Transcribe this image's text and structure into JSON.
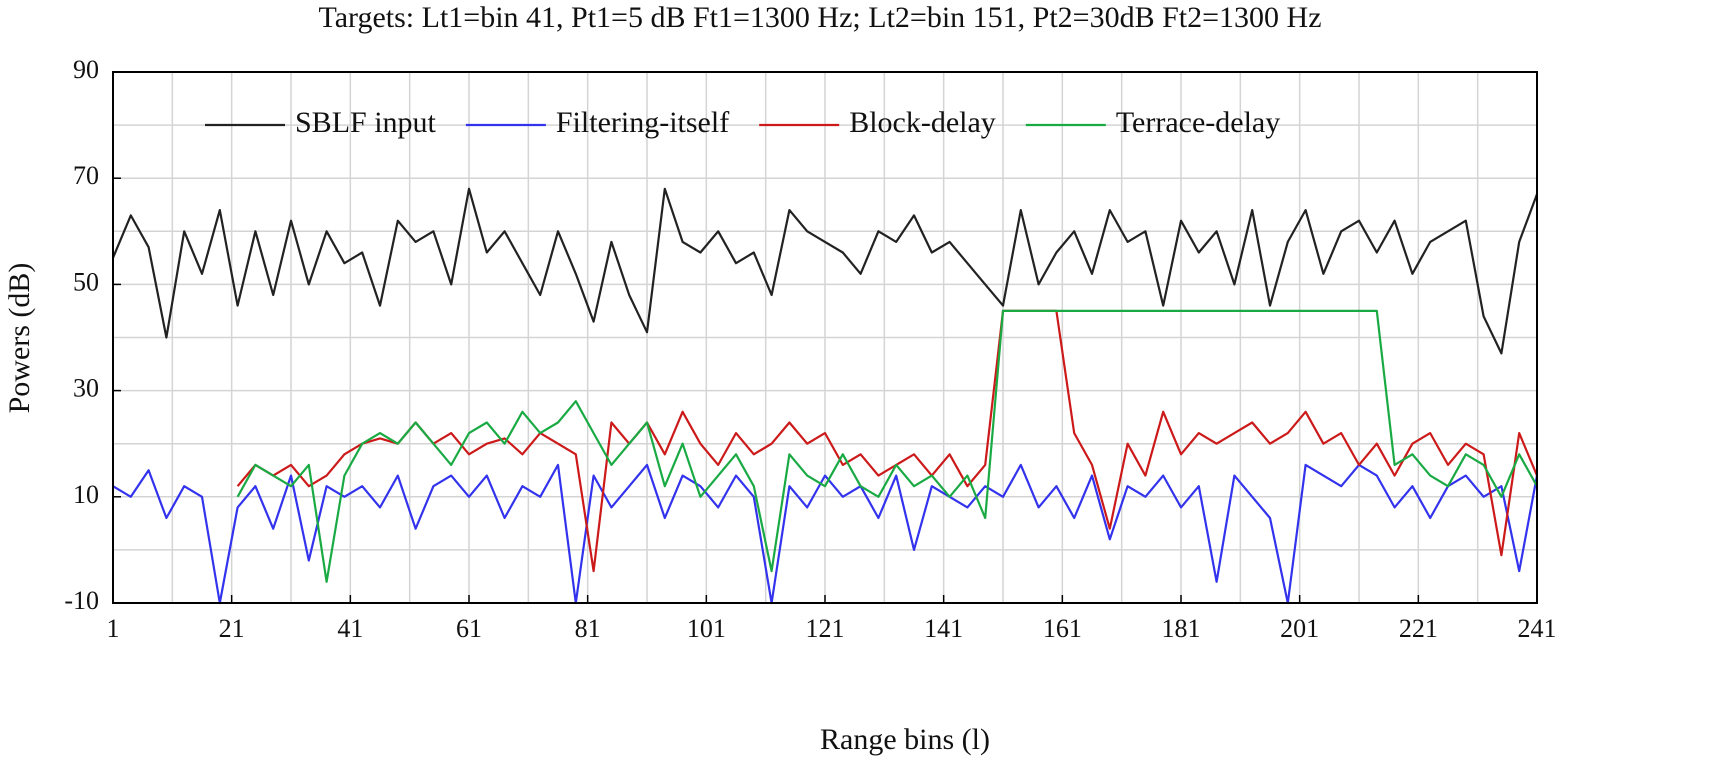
{
  "chart_data": {
    "type": "line",
    "title": "Targets: Lt1=bin 41, Pt1=5 dB Ft1=1300 Hz; Lt2=bin 151, Pt2=30dB Ft2=1300 Hz",
    "xlabel": "Range bins (l)",
    "ylabel": "Powers (dB)",
    "xlim": [
      1,
      241
    ],
    "ylim": [
      -10,
      90
    ],
    "xticks": [
      1,
      21,
      41,
      61,
      81,
      101,
      121,
      141,
      161,
      181,
      201,
      221,
      241
    ],
    "xminor": [
      11,
      31,
      51,
      71,
      91,
      111,
      131,
      151,
      171,
      191,
      211,
      231
    ],
    "yticks": [
      -10,
      10,
      30,
      50,
      70,
      90
    ],
    "yminor": [
      0,
      20,
      40,
      60,
      80
    ],
    "grid": true,
    "legend": "top",
    "x": [
      1,
      4,
      7,
      10,
      13,
      16,
      19,
      22,
      25,
      28,
      31,
      34,
      37,
      40,
      43,
      46,
      49,
      52,
      55,
      58,
      61,
      64,
      67,
      70,
      73,
      76,
      79,
      82,
      85,
      88,
      91,
      94,
      97,
      100,
      103,
      106,
      109,
      112,
      115,
      118,
      121,
      124,
      127,
      130,
      133,
      136,
      139,
      142,
      145,
      148,
      151,
      154,
      157,
      160,
      163,
      166,
      169,
      172,
      175,
      178,
      181,
      184,
      187,
      190,
      193,
      196,
      199,
      202,
      205,
      208,
      211,
      214,
      217,
      220,
      223,
      226,
      229,
      232,
      235,
      238,
      241
    ],
    "series": [
      {
        "name": "SBLF input",
        "color": "#222222",
        "values": [
          55,
          63,
          57,
          40,
          60,
          52,
          64,
          46,
          60,
          48,
          62,
          50,
          60,
          54,
          56,
          46,
          62,
          58,
          60,
          50,
          68,
          56,
          60,
          54,
          48,
          60,
          52,
          43,
          58,
          48,
          41,
          68,
          58,
          56,
          60,
          54,
          56,
          48,
          64,
          60,
          58,
          56,
          52,
          60,
          58,
          63,
          56,
          58,
          54,
          50,
          46,
          64,
          50,
          56,
          60,
          52,
          64,
          58,
          60,
          46,
          62,
          56,
          60,
          50,
          64,
          46,
          58,
          64,
          52,
          60,
          62,
          56,
          62,
          52,
          58,
          60,
          62,
          44,
          37,
          58,
          67
        ]
      },
      {
        "name": "Filtering-itself",
        "color": "#3333ee",
        "values": [
          12,
          10,
          15,
          6,
          12,
          10,
          -10,
          8,
          12,
          4,
          14,
          -2,
          12,
          10,
          12,
          8,
          14,
          4,
          12,
          14,
          10,
          14,
          6,
          12,
          10,
          16,
          -10,
          14,
          8,
          12,
          16,
          6,
          14,
          12,
          8,
          14,
          10,
          -10,
          12,
          8,
          14,
          10,
          12,
          6,
          14,
          0,
          12,
          10,
          8,
          12,
          10,
          16,
          8,
          12,
          6,
          14,
          2,
          12,
          10,
          14,
          8,
          12,
          -6,
          14,
          10,
          6,
          -10,
          16,
          14,
          12,
          16,
          14,
          8,
          12,
          6,
          12,
          14,
          10,
          12,
          -4,
          14
        ]
      },
      {
        "name": "Block-delay",
        "color": "#cc1a1a",
        "values": [
          null,
          null,
          null,
          null,
          null,
          null,
          null,
          12,
          16,
          14,
          16,
          12,
          14,
          18,
          20,
          21,
          20,
          24,
          20,
          22,
          18,
          20,
          21,
          18,
          22,
          20,
          18,
          -4,
          24,
          20,
          24,
          18,
          26,
          20,
          16,
          22,
          18,
          20,
          24,
          20,
          22,
          16,
          18,
          14,
          16,
          18,
          14,
          18,
          12,
          16,
          45,
          45,
          45,
          45,
          22,
          16,
          4,
          20,
          14,
          26,
          18,
          22,
          20,
          22,
          24,
          20,
          22,
          26,
          20,
          22,
          16,
          20,
          14,
          20,
          22,
          16,
          20,
          18,
          -1,
          22,
          14
        ]
      },
      {
        "name": "Terrace-delay",
        "color": "#1aaa44",
        "values": [
          null,
          null,
          null,
          null,
          null,
          null,
          null,
          10,
          16,
          14,
          12,
          16,
          -6,
          14,
          20,
          22,
          20,
          24,
          20,
          16,
          22,
          24,
          20,
          26,
          22,
          24,
          28,
          22,
          16,
          20,
          24,
          12,
          20,
          10,
          14,
          18,
          12,
          -4,
          18,
          14,
          12,
          18,
          12,
          10,
          16,
          12,
          14,
          10,
          14,
          6,
          45,
          45,
          45,
          45,
          45,
          45,
          45,
          45,
          45,
          45,
          45,
          45,
          45,
          45,
          45,
          45,
          45,
          45,
          45,
          45,
          45,
          45,
          16,
          18,
          14,
          12,
          18,
          16,
          10,
          18,
          12
        ]
      }
    ]
  }
}
